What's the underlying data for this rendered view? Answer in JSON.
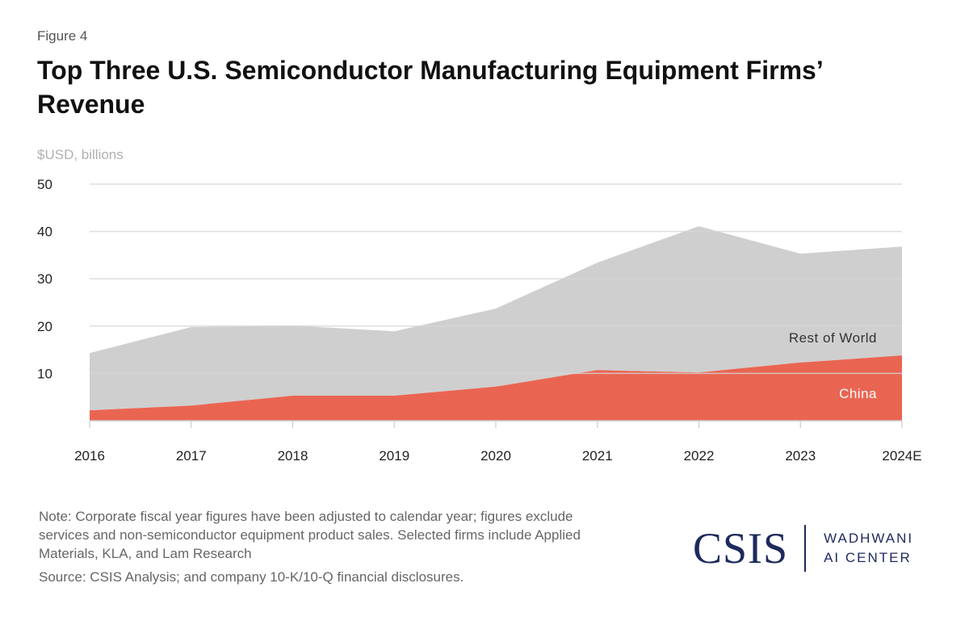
{
  "figure_label": "Figure 4",
  "title": "Top Three U.S. Semiconductor Manufacturing Equipment Firms’ Revenue",
  "unit_label": "$USD, billions",
  "note": "Note: Corporate fiscal year figures have been adjusted to calendar year; figures exclude services and non-semiconductor equipment product sales. Selected firms include Applied Materials, KLA, and Lam Research",
  "source": "Source: CSIS Analysis; and company 10-K/10-Q financial disclosures.",
  "logo": {
    "main": "CSIS",
    "line1": "WADHWANI",
    "line2": "AI CENTER"
  },
  "chart_data": {
    "type": "area",
    "stacked": true,
    "categories": [
      "2016",
      "2017",
      "2018",
      "2019",
      "2020",
      "2021",
      "2022",
      "2023",
      "2024E"
    ],
    "series": [
      {
        "name": "China",
        "color": "#e96552",
        "values": [
          2.2,
          3.2,
          5.3,
          5.3,
          7.2,
          10.7,
          10.2,
          12.3,
          13.8
        ]
      },
      {
        "name": "Rest of World",
        "color": "#cfcfcf",
        "values": [
          12.1,
          16.6,
          14.8,
          13.6,
          16.5,
          22.7,
          30.9,
          23.0,
          23.0
        ]
      }
    ],
    "yticks": [
      10,
      20,
      30,
      40,
      50
    ],
    "ylim": [
      0,
      50
    ],
    "grid": true,
    "legend": "inline labels at right"
  }
}
